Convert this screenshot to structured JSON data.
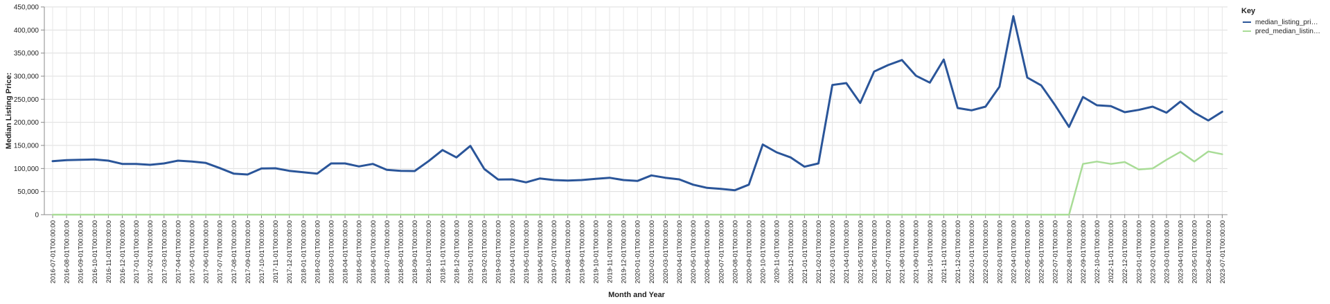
{
  "chart_data": {
    "type": "line",
    "title": "",
    "xlabel": "Month and Year",
    "ylabel": "Median Listing Price:",
    "ylim": [
      0,
      450000
    ],
    "y_ticks": [
      "0",
      "50,000",
      "100,000",
      "150,000",
      "200,000",
      "250,000",
      "300,000",
      "350,000",
      "400,000",
      "450,000"
    ],
    "y_tick_values": [
      0,
      50000,
      100000,
      150000,
      200000,
      250000,
      300000,
      350000,
      400000,
      450000
    ],
    "grid": true,
    "legend": {
      "title": "Key",
      "placement": "top-right",
      "entries": [
        "median_listing_pri…",
        "pred_median_listin…"
      ]
    },
    "x": [
      "2016-07-01T00:00:00",
      "2016-08-01T00:00:00",
      "2016-09-01T00:00:00",
      "2016-10-01T00:00:00",
      "2016-11-01T00:00:00",
      "2016-12-01T00:00:00",
      "2017-01-01T00:00:00",
      "2017-02-01T00:00:00",
      "2017-03-01T00:00:00",
      "2017-04-01T00:00:00",
      "2017-05-01T00:00:00",
      "2017-06-01T00:00:00",
      "2017-07-01T00:00:00",
      "2017-08-01T00:00:00",
      "2017-09-01T00:00:00",
      "2017-10-01T00:00:00",
      "2017-11-01T00:00:00",
      "2017-12-01T00:00:00",
      "2018-01-01T00:00:00",
      "2018-02-01T00:00:00",
      "2018-03-01T00:00:00",
      "2018-04-01T00:00:00",
      "2018-05-01T00:00:00",
      "2018-06-01T00:00:00",
      "2018-07-01T00:00:00",
      "2018-08-01T00:00:00",
      "2018-09-01T00:00:00",
      "2018-10-01T00:00:00",
      "2018-11-01T00:00:00",
      "2018-12-01T00:00:00",
      "2019-01-01T00:00:00",
      "2019-02-01T00:00:00",
      "2019-03-01T00:00:00",
      "2019-04-01T00:00:00",
      "2019-05-01T00:00:00",
      "2019-06-01T00:00:00",
      "2019-07-01T00:00:00",
      "2019-08-01T00:00:00",
      "2019-09-01T00:00:00",
      "2019-10-01T00:00:00",
      "2019-11-01T00:00:00",
      "2019-12-01T00:00:00",
      "2020-01-01T00:00:00",
      "2020-02-01T00:00:00",
      "2020-03-01T00:00:00",
      "2020-04-01T00:00:00",
      "2020-05-01T00:00:00",
      "2020-06-01T00:00:00",
      "2020-07-01T00:00:00",
      "2020-08-01T00:00:00",
      "2020-09-01T00:00:00",
      "2020-10-01T00:00:00",
      "2020-11-01T00:00:00",
      "2020-12-01T00:00:00",
      "2021-01-01T00:00:00",
      "2021-02-01T00:00:00",
      "2021-03-01T00:00:00",
      "2021-04-01T00:00:00",
      "2021-05-01T00:00:00",
      "2021-06-01T00:00:00",
      "2021-07-01T00:00:00",
      "2021-08-01T00:00:00",
      "2021-09-01T00:00:00",
      "2021-10-01T00:00:00",
      "2021-11-01T00:00:00",
      "2021-12-01T00:00:00",
      "2022-01-01T00:00:00",
      "2022-02-01T00:00:00",
      "2022-03-01T00:00:00",
      "2022-04-01T00:00:00",
      "2022-05-01T00:00:00",
      "2022-06-01T00:00:00",
      "2022-07-01T00:00:00",
      "2022-08-01T00:00:00",
      "2022-09-01T00:00:00",
      "2022-10-01T00:00:00",
      "2022-11-01T00:00:00",
      "2022-12-01T00:00:00",
      "2023-01-01T00:00:00",
      "2023-02-01T00:00:00",
      "2023-03-01T00:00:00",
      "2023-04-01T00:00:00",
      "2023-05-01T00:00:00",
      "2023-06-01T00:00:00",
      "2023-07-01T00:00:00"
    ],
    "series": [
      {
        "name": "median_listing_pri…",
        "color": "#2a5599",
        "values": [
          116000,
          118000,
          119000,
          119500,
          117000,
          110000,
          110000,
          108000,
          111000,
          117000,
          115000,
          112000,
          101000,
          89000,
          87000,
          100000,
          100500,
          95000,
          92000,
          89000,
          111000,
          111000,
          104500,
          110000,
          97000,
          95000,
          94500,
          116000,
          140000,
          124000,
          149000,
          99000,
          76000,
          76500,
          70000,
          78500,
          75000,
          74000,
          75000,
          77500,
          80000,
          75000,
          73000,
          85000,
          80000,
          76500,
          65000,
          58000,
          56000,
          53000,
          65000,
          152000,
          135000,
          124000,
          104000,
          111000,
          281000,
          285000,
          242000,
          310000,
          324000,
          335000,
          301000,
          286000,
          336000,
          231000,
          226000,
          234000,
          277000,
          430000,
          297000,
          280000,
          237000,
          190000,
          255000,
          237000,
          235000,
          222000,
          227000,
          234000,
          221000,
          245000,
          221000,
          204000,
          223000
        ]
      },
      {
        "name": "pred_median_listin…",
        "color": "#a8dc96",
        "values": [
          0,
          0,
          0,
          0,
          0,
          0,
          0,
          0,
          0,
          0,
          0,
          0,
          0,
          0,
          0,
          0,
          0,
          0,
          0,
          0,
          0,
          0,
          0,
          0,
          0,
          0,
          0,
          0,
          0,
          0,
          0,
          0,
          0,
          0,
          0,
          0,
          0,
          0,
          0,
          0,
          0,
          0,
          0,
          0,
          0,
          0,
          0,
          0,
          0,
          0,
          0,
          0,
          0,
          0,
          0,
          0,
          0,
          0,
          0,
          0,
          0,
          0,
          0,
          0,
          0,
          0,
          0,
          0,
          0,
          0,
          0,
          0,
          0,
          0,
          110000,
          115000,
          110000,
          114000,
          98000,
          100000,
          119000,
          136000,
          115000,
          137000,
          131000
        ]
      }
    ]
  }
}
